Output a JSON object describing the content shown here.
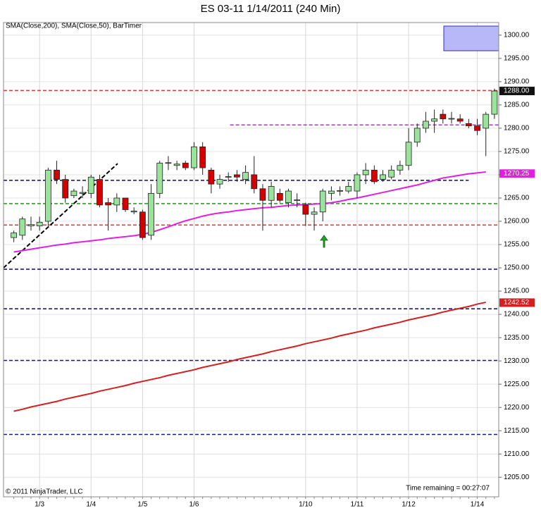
{
  "chart_data": {
    "type": "candlestick",
    "title": "ES 03-11  1/14/2011 (240 Min)",
    "indicators_label": "SMA(Close,200), SMA(Close,50), BarTimer",
    "copyright": "© 2011 NinjaTrader, LLC",
    "timer_label": "Time remaining = 00:27:07",
    "categories": [
      null,
      null,
      null,
      "1/3",
      null,
      null,
      null,
      null,
      null,
      "1/4",
      null,
      null,
      null,
      null,
      null,
      "1/5",
      null,
      null,
      null,
      null,
      null,
      "1/6",
      null,
      null,
      null,
      null,
      null,
      null,
      null,
      null,
      null,
      null,
      null,
      null,
      "1/10",
      null,
      null,
      null,
      null,
      null,
      "1/11",
      null,
      null,
      null,
      null,
      null,
      "1/12",
      null,
      null,
      null,
      null,
      null,
      null,
      null,
      "1/14",
      null,
      null
    ],
    "open": [
      1256.5,
      1257,
      1259,
      1259,
      1260,
      1271,
      1269,
      1265.5,
      1266,
      1266,
      1269,
      1264,
      1263.5,
      1265,
      1262,
      1262,
      1257,
      1266,
      1272.5,
      1272,
      1272.5,
      1271.5,
      1276,
      1271,
      1268,
      1269.5,
      1270,
      1269,
      1270,
      1267,
      1264.5,
      1266,
      1264,
      1264.5,
      1263.5,
      1261.5,
      1262,
      1266,
      1266.5,
      1266.5,
      1266.5,
      1270,
      1271,
      1269,
      1269.5,
      1271,
      1272,
      1277,
      1280,
      1281.5,
      1283,
      1282,
      1282,
      1281,
      1280.5,
      1280,
      1283
    ],
    "high": [
      1258,
      1261,
      1261,
      1261,
      1271.5,
      1273,
      1270,
      1267,
      1267.5,
      1270,
      1270,
      1265,
      1266,
      1265,
      1263,
      1262.5,
      1268,
      1273,
      1274,
      1273,
      1273,
      1277,
      1277,
      1271.5,
      1270,
      1270.5,
      1271,
      1272,
      1274,
      1268,
      1268.5,
      1267,
      1267,
      1266,
      1264,
      1263,
      1267,
      1267.5,
      1267.5,
      1268.5,
      1270.5,
      1272.5,
      1272,
      1271,
      1272,
      1273,
      1280,
      1281,
      1283.5,
      1284,
      1284,
      1283.5,
      1283,
      1282,
      1282,
      1283.5,
      1288.5
    ],
    "low": [
      1255.5,
      1256,
      1258,
      1258,
      1259,
      1268,
      1264,
      1265,
      1265,
      1265,
      1263,
      1258,
      1262,
      1262,
      1261.5,
      1256,
      1256,
      1265,
      1271,
      1271,
      1271,
      1271,
      1270,
      1266,
      1267,
      1268.5,
      1268.5,
      1268,
      1266,
      1258,
      1263,
      1264,
      1263,
      1263,
      1259,
      1258,
      1260,
      1264.5,
      1265.5,
      1266,
      1265,
      1268,
      1268,
      1268.5,
      1269,
      1270,
      1271,
      1276,
      1279,
      1279,
      1281,
      1281,
      1281,
      1280,
      1278.5,
      1274,
      1282
    ],
    "close": [
      1257.5,
      1260.5,
      1259.3,
      1259.8,
      1271,
      1269,
      1265,
      1266.5,
      1266.2,
      1269.5,
      1263.5,
      1263.5,
      1265,
      1262.5,
      1262.2,
      1256.5,
      1266,
      1272.5,
      1272.6,
      1272.3,
      1271.5,
      1276,
      1271.5,
      1268,
      1269,
      1269.6,
      1269.5,
      1270.5,
      1267,
      1264.5,
      1267.5,
      1264.5,
      1266.5,
      1264.6,
      1261.5,
      1262,
      1266.5,
      1266.5,
      1266.6,
      1267.5,
      1270,
      1271,
      1268.5,
      1270,
      1271,
      1272,
      1277,
      1280,
      1281.5,
      1282,
      1282,
      1282.1,
      1281.5,
      1280.5,
      1279.5,
      1283,
      1288
    ],
    "up_color": "#9be39b",
    "down_color": "#d40000",
    "price_marker": {
      "value": 1288,
      "label": "1288.00"
    },
    "series": [
      {
        "color": "#d42020",
        "end_value": 1242.52,
        "values": [
          1219.2,
          1219.6,
          1220.1,
          1220.5,
          1220.9,
          1221.3,
          1221.8,
          1222.2,
          1222.6,
          1223.0,
          1223.5,
          1223.9,
          1224.3,
          1224.7,
          1225.2,
          1225.6,
          1226.0,
          1226.4,
          1226.9,
          1227.3,
          1227.7,
          1228.1,
          1228.6,
          1229.0,
          1229.4,
          1229.8,
          1230.3,
          1230.7,
          1231.1,
          1231.5,
          1232.0,
          1232.4,
          1232.8,
          1233.2,
          1233.7,
          1234.1,
          1234.5,
          1234.9,
          1235.4,
          1235.8,
          1236.2,
          1236.6,
          1237.1,
          1237.5,
          1237.9,
          1238.3,
          1238.8,
          1239.2,
          1239.6,
          1240.0,
          1240.5,
          1240.9,
          1241.3,
          1241.7,
          1242.2,
          1242.6,
          null
        ]
      },
      {
        "color": "#e020e0",
        "end_value": 1270.25,
        "values": [
          1253.4,
          1253.7,
          1254.0,
          1254.3,
          1254.6,
          1254.9,
          1255.1,
          1255.4,
          1255.6,
          1255.8,
          1256.0,
          1256.3,
          1256.5,
          1256.7,
          1256.9,
          1257.2,
          1257.6,
          1258.2,
          1258.8,
          1259.5,
          1260.1,
          1260.6,
          1261.1,
          1261.5,
          1261.8,
          1262.0,
          1262.3,
          1262.5,
          1262.7,
          1262.9,
          1263.0,
          1263.2,
          1263.4,
          1263.5,
          1263.6,
          1263.7,
          1263.8,
          1264.0,
          1264.3,
          1264.7,
          1265.0,
          1265.4,
          1265.8,
          1266.2,
          1266.6,
          1267.0,
          1267.4,
          1267.8,
          1268.3,
          1268.8,
          1269.3,
          1269.6,
          1269.9,
          1270.2,
          1270.4,
          1270.6,
          null
        ]
      }
    ],
    "levels": [
      {
        "value": 1288.1,
        "color": "#e03c31",
        "from": -1.2,
        "to": 56.5
      },
      {
        "value": 1280.7,
        "color": "#a040d0",
        "from": 25.2,
        "to": 56.5
      },
      {
        "value": 1268.8,
        "color": "#1a1a8c",
        "from": -1.2,
        "to": 53
      },
      {
        "value": 1263.8,
        "color": "#2ca02c",
        "from": -1.2,
        "to": 56.5
      },
      {
        "value": 1259.2,
        "color": "#e03c31",
        "from": -1.2,
        "to": 56.5
      },
      {
        "value": 1249.7,
        "color": "#1a1a8c",
        "from": -1.2,
        "to": 56.5
      },
      {
        "value": 1241.2,
        "color": "#1a1a8c",
        "from": -1.2,
        "to": 56.5
      },
      {
        "value": 1230.1,
        "color": "#1a1a8c",
        "from": -1.2,
        "to": 56.5
      },
      {
        "value": 1214.2,
        "color": "#1a1a8c",
        "from": -1.2,
        "to": 56.5
      }
    ],
    "trend_line": {
      "x": [
        -1.2,
        12.1
      ],
      "y": [
        1250,
        1272.4
      ],
      "color": "#000000"
    },
    "xlim": [
      -1.2,
      56.5
    ],
    "ylim": [
      1200.8,
      1302.7
    ],
    "yticks": [
      {
        "value": 1205,
        "label": "1205.00"
      },
      {
        "value": 1210,
        "label": "1210.00"
      },
      {
        "value": 1215,
        "label": "1215.00"
      },
      {
        "value": 1220,
        "label": "1220.00"
      },
      {
        "value": 1225,
        "label": "1225.00"
      },
      {
        "value": 1230,
        "label": "1230.00"
      },
      {
        "value": 1235,
        "label": "1235.00"
      },
      {
        "value": 1240,
        "label": "1240.00"
      },
      {
        "value": 1245,
        "label": "1245.00"
      },
      {
        "value": 1250,
        "label": "1250.00"
      },
      {
        "value": 1255,
        "label": "1255.00"
      },
      {
        "value": 1260,
        "label": "1260.00"
      },
      {
        "value": 1265,
        "label": "1265.00"
      },
      {
        "value": 1270,
        "label": "1270.00"
      },
      {
        "value": 1275,
        "label": "1275.00"
      },
      {
        "value": 1280,
        "label": "1280.00"
      },
      {
        "value": 1285,
        "label": "1285.00"
      },
      {
        "value": 1290,
        "label": "1290.00"
      },
      {
        "value": 1295,
        "label": "1295.00"
      },
      {
        "value": 1300,
        "label": "1300.00"
      }
    ],
    "grid": true
  }
}
